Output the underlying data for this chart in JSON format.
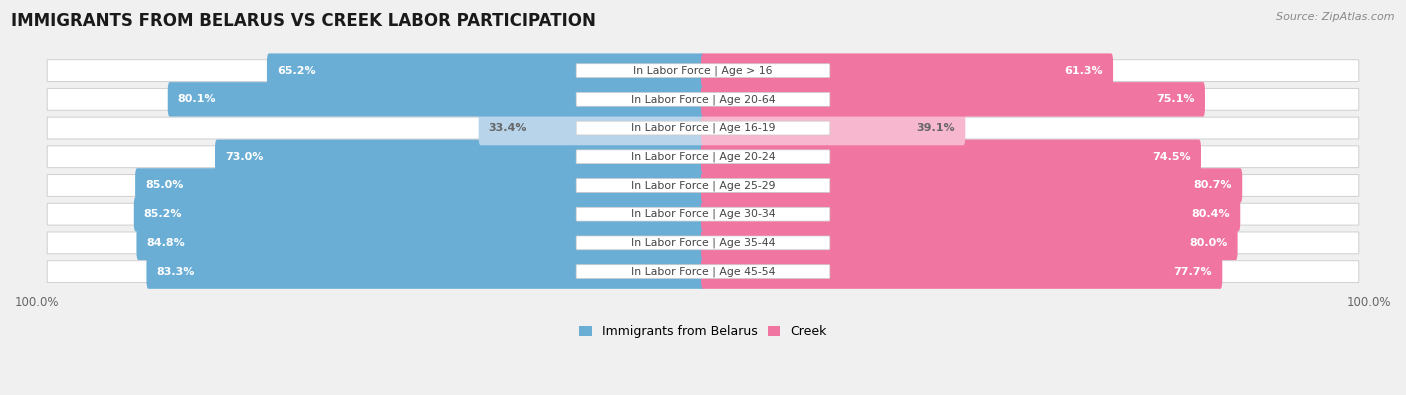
{
  "title": "IMMIGRANTS FROM BELARUS VS CREEK LABOR PARTICIPATION",
  "source": "Source: ZipAtlas.com",
  "categories": [
    "In Labor Force | Age > 16",
    "In Labor Force | Age 20-64",
    "In Labor Force | Age 16-19",
    "In Labor Force | Age 20-24",
    "In Labor Force | Age 25-29",
    "In Labor Force | Age 30-34",
    "In Labor Force | Age 35-44",
    "In Labor Force | Age 45-54"
  ],
  "belarus_values": [
    65.2,
    80.1,
    33.4,
    73.0,
    85.0,
    85.2,
    84.8,
    83.3
  ],
  "creek_values": [
    61.3,
    75.1,
    39.1,
    74.5,
    80.7,
    80.4,
    80.0,
    77.7
  ],
  "belarus_color": "#6aaed6",
  "creek_color": "#f075a0",
  "belarus_light_color": "#b8d4ea",
  "creek_light_color": "#f7b8cf",
  "background_color": "#f0f0f0",
  "max_value": 100.0,
  "bar_height": 0.6,
  "title_fontsize": 12,
  "label_fontsize": 7.8,
  "value_fontsize": 8,
  "legend_fontsize": 9,
  "source_fontsize": 8
}
